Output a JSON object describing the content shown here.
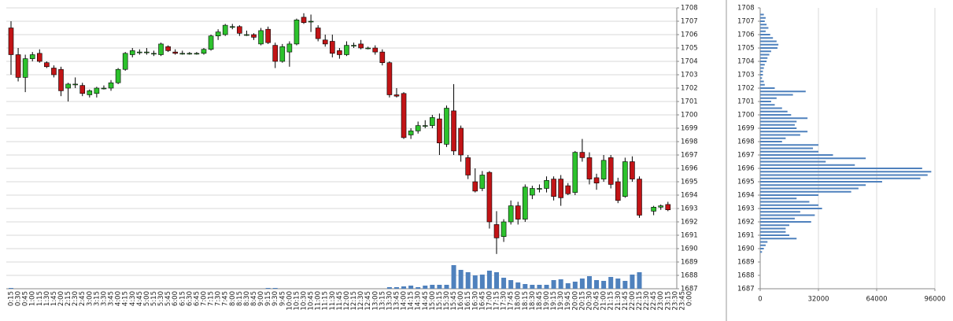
{
  "chart_data": [
    {
      "type": "candlestick",
      "categories": [
        "0:15",
        "0:30",
        "0:45",
        "1:00",
        "1:15",
        "1:30",
        "1:45",
        "2:00",
        "2:15",
        "2:30",
        "2:45",
        "3:00",
        "3:15",
        "3:30",
        "3:45",
        "4:00",
        "4:15",
        "4:30",
        "4:45",
        "5:00",
        "5:15",
        "5:30",
        "5:45",
        "6:00",
        "6:15",
        "6:30",
        "6:45",
        "7:00",
        "7:15",
        "7:30",
        "7:45",
        "8:00",
        "8:15",
        "8:30",
        "8:45",
        "9:00",
        "9:15",
        "9:30",
        "9:45",
        "10:00",
        "10:15",
        "10:30",
        "10:45",
        "11:00",
        "11:15",
        "11:30",
        "11:45",
        "12:00",
        "12:15",
        "12:30",
        "12:45",
        "13:00",
        "13:15",
        "13:30",
        "13:45",
        "14:00",
        "14:15",
        "14:30",
        "14:45",
        "15:00",
        "15:15",
        "15:30",
        "15:45",
        "16:00",
        "16:15",
        "16:30",
        "16:45",
        "17:00",
        "17:15",
        "17:30",
        "17:45",
        "18:00",
        "18:15",
        "18:30",
        "18:45",
        "19:00",
        "19:15",
        "19:30",
        "19:45",
        "20:00",
        "20:15",
        "20:30",
        "20:45",
        "21:00",
        "21:15",
        "21:30",
        "21:45",
        "22:00",
        "22:15",
        "22:30",
        "22:45",
        "23:00",
        "23:15",
        "23:30",
        "23:45",
        "0:00"
      ],
      "open": [
        1706.5,
        1704.5,
        1702.8,
        1704.2,
        1704.6,
        1703.9,
        1703.5,
        1703.4,
        1702,
        1702.3,
        1702.2,
        1701.5,
        1701.6,
        1702,
        1702,
        1702.4,
        1703.4,
        1704.5,
        1704.7,
        1704.7,
        1704.6,
        1704.5,
        1705.1,
        1704.7,
        1704.6,
        1704.6,
        1704.6,
        1704.6,
        1704.9,
        1705.9,
        1706,
        1706.6,
        1706.6,
        1706,
        1706,
        1705.3,
        1706.4,
        1705.2,
        1704,
        1704.7,
        1705.3,
        1707.3,
        1707,
        1706.5,
        1705.6,
        1705.5,
        1704.8,
        1704.5,
        1705.2,
        1705.3,
        1705,
        1705,
        1704.7,
        1703.9,
        1701.5,
        1701.6,
        1698.5,
        1698.8,
        1699.2,
        1699.2,
        1699.7,
        1697.8,
        1700.3,
        1699,
        1696.8,
        1695,
        1694.5,
        1695.7,
        1691.8,
        1690.9,
        1692,
        1693.2,
        1692.2,
        1694,
        1694.5,
        1694.5,
        1695.2,
        1695.2,
        1694.7,
        1694.2,
        1697.2,
        1696.8,
        1695.3,
        1695.2,
        1696.8,
        1695,
        1693.9,
        1696.5,
        1695.2,
        null,
        1692.8,
        1693.1,
        1693.3,
        null,
        null,
        null
      ],
      "high": [
        1707,
        1705,
        1704.5,
        1704.7,
        1704.9,
        1704,
        1703.7,
        1703.6,
        1702.4,
        1702.8,
        1702.4,
        1701.9,
        1702.1,
        1702.2,
        1702.6,
        1703.5,
        1704.7,
        1705,
        1704.9,
        1705,
        1704.8,
        1705.4,
        1705.2,
        1704.9,
        1704.8,
        1704.7,
        1704.7,
        1705,
        1706,
        1706.4,
        1706.8,
        1706.8,
        1706.7,
        1706.3,
        1706.1,
        1706.5,
        1706.6,
        1705.4,
        1705.3,
        1705.5,
        1707.2,
        1707.6,
        1707.5,
        1706.7,
        1706,
        1706,
        1705,
        1705.5,
        1705.4,
        1705.6,
        1705.1,
        1705.2,
        1704.9,
        1704,
        1702,
        1701.7,
        1699,
        1699.5,
        1699.6,
        1700,
        1700.1,
        1700.7,
        1702.3,
        1699.2,
        1697,
        1696,
        1695.8,
        1695.8,
        1692.8,
        1692.2,
        1693.6,
        1693.5,
        1694.8,
        1694.7,
        1694.8,
        1695.4,
        1695.4,
        1695.5,
        1694.9,
        1697.3,
        1698.2,
        1697.2,
        1695.6,
        1697,
        1697,
        1695.3,
        1696.8,
        1696.9,
        1695.4,
        null,
        1693.2,
        1693.3,
        1693.5,
        null,
        null,
        null
      ],
      "low": [
        1703,
        1702.5,
        1701.7,
        1704,
        1703.9,
        1703.5,
        1702.8,
        1701.4,
        1701,
        1702,
        1701.4,
        1701.3,
        1701.3,
        1701.9,
        1701.8,
        1702.3,
        1703.3,
        1704.3,
        1704.5,
        1704.5,
        1704.4,
        1704.4,
        1704.7,
        1704.5,
        1704.5,
        1704.5,
        1704.5,
        1704.5,
        1704.8,
        1705.6,
        1705.9,
        1706.4,
        1705.9,
        1705.9,
        1705.6,
        1705.2,
        1705.3,
        1703.5,
        1703.9,
        1703.6,
        1705.2,
        1706.8,
        1706.2,
        1705.5,
        1705.1,
        1704.3,
        1704.2,
        1704.4,
        1705,
        1704.9,
        1704.9,
        1704.5,
        1703.7,
        1701.3,
        1701.3,
        1698.2,
        1698.2,
        1698.6,
        1699,
        1699,
        1697,
        1697.6,
        1697,
        1696.5,
        1695.2,
        1694.2,
        1694.3,
        1691.5,
        1689.6,
        1690.5,
        1691.8,
        1691.8,
        1692,
        1693.7,
        1694.2,
        1694.2,
        1693.6,
        1693.2,
        1694,
        1694,
        1696.5,
        1694.8,
        1694.4,
        1695,
        1694.5,
        1693.4,
        1693.8,
        1695,
        1692.3,
        null,
        1692.5,
        1692.9,
        1692.8,
        null,
        null,
        null
      ],
      "close": [
        1704.5,
        1702.8,
        1704.2,
        1704.5,
        1704,
        1703.6,
        1703,
        1701.8,
        1702.3,
        1702.3,
        1701.6,
        1701.8,
        1702,
        1702,
        1702.4,
        1703.4,
        1704.6,
        1704.8,
        1704.7,
        1704.7,
        1704.6,
        1705.3,
        1704.8,
        1704.6,
        1704.6,
        1704.6,
        1704.6,
        1704.9,
        1705.9,
        1706.2,
        1706.7,
        1706.6,
        1706.1,
        1706,
        1705.8,
        1706.3,
        1705.4,
        1704,
        1705.1,
        1705.3,
        1707.1,
        1706.9,
        1707,
        1705.7,
        1705.3,
        1704.6,
        1704.5,
        1705.2,
        1705.2,
        1705,
        1705,
        1704.7,
        1703.9,
        1701.5,
        1701.4,
        1698.3,
        1698.8,
        1699.2,
        1699.2,
        1699.8,
        1697.9,
        1700.5,
        1697.3,
        1697,
        1695.5,
        1694.3,
        1695.5,
        1692,
        1690.8,
        1692,
        1693.2,
        1692.2,
        1694.6,
        1694.5,
        1694.5,
        1695.1,
        1693.9,
        1693.8,
        1694.1,
        1697.2,
        1696.8,
        1695.2,
        1694.9,
        1696.6,
        1694.8,
        1693.6,
        1696.5,
        1695.2,
        1692.5,
        null,
        1693.1,
        1693.2,
        1692.9,
        null,
        null,
        null
      ],
      "volume": [
        100,
        null,
        null,
        null,
        null,
        null,
        null,
        null,
        null,
        null,
        null,
        null,
        null,
        null,
        null,
        null,
        null,
        null,
        null,
        null,
        null,
        null,
        null,
        null,
        null,
        null,
        null,
        null,
        null,
        null,
        null,
        null,
        null,
        null,
        null,
        null,
        100,
        100,
        null,
        null,
        null,
        null,
        null,
        null,
        null,
        null,
        null,
        null,
        null,
        null,
        null,
        null,
        null,
        200,
        200,
        300,
        400,
        200,
        400,
        500,
        500,
        500,
        3000,
        2400,
        2100,
        1700,
        1800,
        2300,
        2100,
        1400,
        1100,
        800,
        600,
        500,
        500,
        500,
        1100,
        1200,
        700,
        900,
        1300,
        1600,
        1100,
        1000,
        1500,
        1300,
        1000,
        1800,
        2100,
        null,
        null,
        null,
        null,
        null,
        null,
        null
      ],
      "volume_ylim": [
        0,
        6000
      ],
      "ylim": [
        1687,
        1708
      ],
      "yticks": [
        1687,
        1688,
        1689,
        1690,
        1691,
        1692,
        1693,
        1694,
        1695,
        1696,
        1697,
        1698,
        1699,
        1700,
        1701,
        1702,
        1703,
        1704,
        1705,
        1706,
        1707,
        1708
      ],
      "grid": true,
      "up_color": "#2dc22d",
      "down_color": "#c21416",
      "volume_color": "#4f81bd"
    },
    {
      "type": "barh",
      "y": [
        1707.5,
        1707.25,
        1707,
        1706.75,
        1706.5,
        1706.25,
        1706,
        1705.75,
        1705.5,
        1705.25,
        1705,
        1704.75,
        1704.5,
        1704.25,
        1704,
        1703.75,
        1703.5,
        1703.25,
        1703,
        1702.75,
        1702.5,
        1702.25,
        1702,
        1701.75,
        1701.5,
        1701.25,
        1701,
        1700.75,
        1700.5,
        1700.25,
        1700,
        1699.75,
        1699.5,
        1699.25,
        1699,
        1698.75,
        1698.5,
        1698.25,
        1698,
        1697.75,
        1697.5,
        1697.25,
        1697,
        1696.75,
        1696.5,
        1696.25,
        1696,
        1695.75,
        1695.5,
        1695.25,
        1695,
        1694.75,
        1694.5,
        1694.25,
        1694,
        1693.75,
        1693.5,
        1693.25,
        1693,
        1692.75,
        1692.5,
        1692.25,
        1692,
        1691.75,
        1691.5,
        1691.25,
        1691,
        1690.75,
        1690.5,
        1690.25,
        1690,
        1689.75
      ],
      "values": [
        2000,
        3000,
        2500,
        3500,
        4500,
        3000,
        5500,
        7000,
        9000,
        10000,
        9500,
        6000,
        5000,
        4000,
        3500,
        2500,
        2000,
        1500,
        1500,
        1000,
        2000,
        2500,
        8000,
        25000,
        18000,
        9000,
        6000,
        8000,
        12000,
        15000,
        17000,
        26000,
        20000,
        19000,
        20000,
        26000,
        22000,
        14000,
        12000,
        32000,
        29000,
        32000,
        40000,
        58000,
        36000,
        52000,
        89000,
        94000,
        92000,
        88000,
        67000,
        58000,
        54000,
        50000,
        32000,
        20000,
        27000,
        32000,
        34000,
        22000,
        30000,
        19000,
        28000,
        16000,
        14000,
        14000,
        16000,
        20000,
        4000,
        3000,
        2000,
        1000
      ],
      "xlim": [
        0,
        96000
      ],
      "xticks": [
        0,
        32000,
        64000,
        96000
      ],
      "ylim": [
        1687,
        1708
      ],
      "yticks": [
        1687,
        1688,
        1689,
        1690,
        1691,
        1692,
        1693,
        1694,
        1695,
        1696,
        1697,
        1698,
        1699,
        1700,
        1701,
        1702,
        1703,
        1704,
        1705,
        1706,
        1707,
        1708
      ],
      "grid": true,
      "color": "#4f81bd"
    }
  ]
}
